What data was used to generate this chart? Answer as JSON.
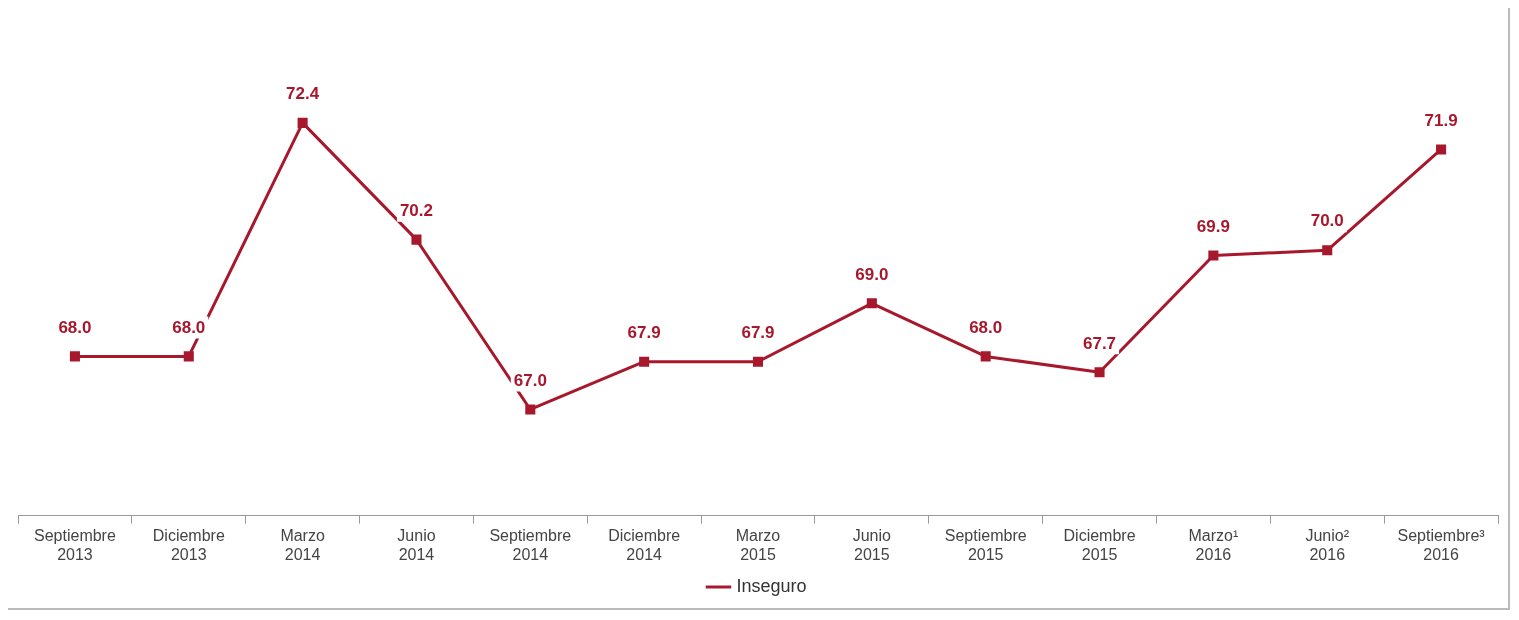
{
  "chart_data": {
    "type": "line",
    "categories": [
      "Septiembre 2013",
      "Diciembre 2013",
      "Marzo 2014",
      "Junio 2014",
      "Septiembre 2014",
      "Diciembre 2014",
      "Marzo 2015",
      "Junio 2015",
      "Septiembre 2015",
      "Diciembre 2015",
      "Marzo¹ 2016",
      "Junio² 2016",
      "Septiembre³ 2016"
    ],
    "series": [
      {
        "name": "Inseguro",
        "color": "#a8182c",
        "values": [
          68.0,
          68.0,
          72.4,
          70.2,
          67.0,
          67.9,
          67.9,
          69.0,
          68.0,
          67.7,
          69.9,
          70.0,
          71.9
        ],
        "value_labels": [
          "68.0",
          "68.0",
          "72.4",
          "70.2",
          "67.0",
          "67.9",
          "67.9",
          "69.0",
          "68.0",
          "67.7",
          "69.9",
          "70.0",
          "71.9"
        ]
      }
    ],
    "marker": "square",
    "legend": "bottom",
    "grid": false
  }
}
